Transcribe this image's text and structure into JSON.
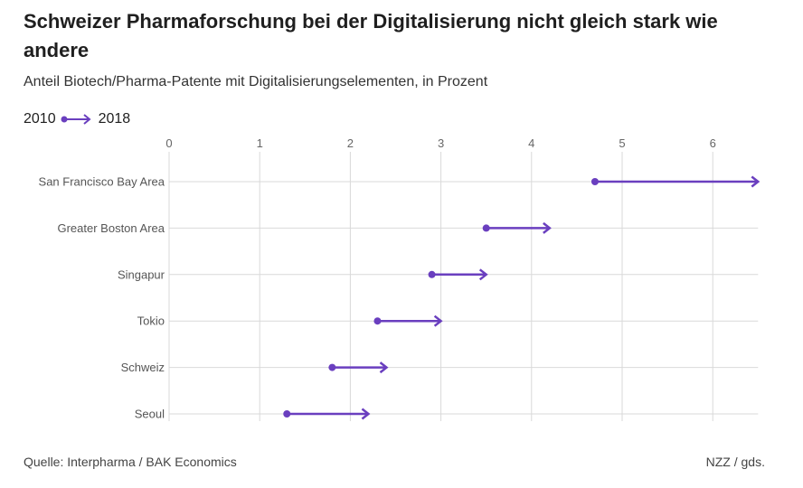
{
  "header": {
    "title": "Schweizer Pharmaforschung bei der Digitalisierung nicht gleich stark wie andere",
    "subtitle": "Anteil Biotech/Pharma-Patente mit Digitalisierungselementen, in Prozent"
  },
  "legend": {
    "start_label": "2010",
    "end_label": "2018"
  },
  "footer": {
    "source": "Quelle: Interpharma / BAK Economics",
    "credit": "NZZ / gds."
  },
  "colors": {
    "accent": "#6a3fbf",
    "grid": "#d9d9d9",
    "tick_text": "#666666"
  },
  "chart_data": {
    "type": "dumbbell",
    "title": "Schweizer Pharmaforschung bei der Digitalisierung nicht gleich stark wie andere",
    "subtitle": "Anteil Biotech/Pharma-Patente mit Digitalisierungselementen, in Prozent",
    "xlim": [
      0,
      6.5
    ],
    "xticks": [
      0,
      1,
      2,
      3,
      4,
      5,
      6
    ],
    "grid": true,
    "legend_position": "top-left",
    "categories": [
      "San Francisco Bay Area",
      "Greater Boston Area",
      "Singapur",
      "Tokio",
      "Schweiz",
      "Seoul"
    ],
    "series": [
      {
        "name": "2010",
        "values": [
          4.7,
          3.5,
          2.9,
          2.3,
          1.8,
          1.3
        ]
      },
      {
        "name": "2018",
        "values": [
          6.5,
          4.2,
          3.5,
          3.0,
          2.4,
          2.2
        ]
      }
    ]
  }
}
